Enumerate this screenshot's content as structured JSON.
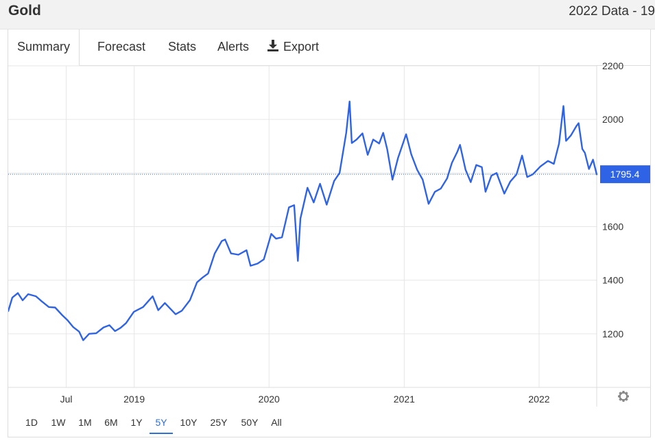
{
  "header": {
    "title": "Gold",
    "subtitle": "2022 Data - 19"
  },
  "tabs": [
    {
      "label": "Summary",
      "active": true
    },
    {
      "label": "Forecast",
      "active": false
    },
    {
      "label": "Stats",
      "active": false
    },
    {
      "label": "Alerts",
      "active": false
    },
    {
      "label": "Export",
      "active": false,
      "icon": "download-icon"
    }
  ],
  "ranges": [
    {
      "label": "1D",
      "active": false
    },
    {
      "label": "1W",
      "active": false
    },
    {
      "label": "1M",
      "active": false
    },
    {
      "label": "6M",
      "active": false
    },
    {
      "label": "1Y",
      "active": false
    },
    {
      "label": "5Y",
      "active": true
    },
    {
      "label": "10Y",
      "active": false
    },
    {
      "label": "25Y",
      "active": false
    },
    {
      "label": "50Y",
      "active": false
    },
    {
      "label": "All",
      "active": false
    }
  ],
  "colors": {
    "line": "#2f63e6",
    "current_badge": "#2f63e6",
    "grid": "#e6e6e6",
    "active_range": "#2f6fd6"
  },
  "chart_data": {
    "type": "line",
    "title": "",
    "xlabel": "",
    "ylabel": "",
    "ylim": [
      1000,
      2200
    ],
    "xlim": [
      "2018-01-25",
      "2022-06-06"
    ],
    "y_ticks": [
      1200,
      1400,
      1600,
      1800,
      2000,
      2200
    ],
    "x_ticks": [
      {
        "date": "2018-07-01",
        "label": "Jul"
      },
      {
        "date": "2019-01-01",
        "label": "2019"
      },
      {
        "date": "2020-01-01",
        "label": "2020"
      },
      {
        "date": "2021-01-01",
        "label": "2021"
      },
      {
        "date": "2022-01-01",
        "label": "2022"
      }
    ],
    "grid": true,
    "current_value": 1795.4,
    "current_label": "1795.4",
    "series": [
      {
        "points": [
          [
            "2018-01-25",
            1285
          ],
          [
            "2018-02-05",
            1335
          ],
          [
            "2018-02-20",
            1352
          ],
          [
            "2018-03-05",
            1325
          ],
          [
            "2018-03-20",
            1348
          ],
          [
            "2018-04-10",
            1340
          ],
          [
            "2018-04-25",
            1322
          ],
          [
            "2018-05-15",
            1300
          ],
          [
            "2018-06-01",
            1298
          ],
          [
            "2018-06-20",
            1270
          ],
          [
            "2018-07-05",
            1250
          ],
          [
            "2018-07-20",
            1225
          ],
          [
            "2018-08-05",
            1208
          ],
          [
            "2018-08-16",
            1176
          ],
          [
            "2018-09-01",
            1200
          ],
          [
            "2018-09-20",
            1202
          ],
          [
            "2018-10-10",
            1224
          ],
          [
            "2018-10-26",
            1232
          ],
          [
            "2018-11-10",
            1210
          ],
          [
            "2018-11-25",
            1222
          ],
          [
            "2018-12-10",
            1240
          ],
          [
            "2018-12-31",
            1282
          ],
          [
            "2019-01-25",
            1300
          ],
          [
            "2019-02-20",
            1340
          ],
          [
            "2019-03-07",
            1288
          ],
          [
            "2019-03-25",
            1315
          ],
          [
            "2019-04-23",
            1273
          ],
          [
            "2019-05-10",
            1286
          ],
          [
            "2019-06-01",
            1326
          ],
          [
            "2019-06-20",
            1392
          ],
          [
            "2019-07-05",
            1410
          ],
          [
            "2019-07-20",
            1425
          ],
          [
            "2019-08-07",
            1500
          ],
          [
            "2019-08-26",
            1546
          ],
          [
            "2019-09-04",
            1552
          ],
          [
            "2019-09-20",
            1500
          ],
          [
            "2019-10-10",
            1495
          ],
          [
            "2019-11-01",
            1512
          ],
          [
            "2019-11-12",
            1454
          ],
          [
            "2019-12-01",
            1462
          ],
          [
            "2019-12-18",
            1478
          ],
          [
            "2020-01-07",
            1573
          ],
          [
            "2020-01-20",
            1555
          ],
          [
            "2020-02-05",
            1560
          ],
          [
            "2020-02-24",
            1672
          ],
          [
            "2020-03-09",
            1680
          ],
          [
            "2020-03-19",
            1472
          ],
          [
            "2020-03-26",
            1630
          ],
          [
            "2020-04-14",
            1745
          ],
          [
            "2020-05-01",
            1690
          ],
          [
            "2020-05-18",
            1760
          ],
          [
            "2020-06-05",
            1682
          ],
          [
            "2020-06-25",
            1770
          ],
          [
            "2020-07-10",
            1800
          ],
          [
            "2020-07-28",
            1950
          ],
          [
            "2020-08-06",
            2067
          ],
          [
            "2020-08-12",
            1912
          ],
          [
            "2020-08-25",
            1925
          ],
          [
            "2020-09-10",
            1948
          ],
          [
            "2020-09-24",
            1868
          ],
          [
            "2020-10-09",
            1925
          ],
          [
            "2020-10-25",
            1910
          ],
          [
            "2020-11-05",
            1950
          ],
          [
            "2020-11-16",
            1888
          ],
          [
            "2020-11-30",
            1775
          ],
          [
            "2020-12-15",
            1855
          ],
          [
            "2021-01-06",
            1945
          ],
          [
            "2021-01-20",
            1870
          ],
          [
            "2021-02-05",
            1812
          ],
          [
            "2021-02-20",
            1775
          ],
          [
            "2021-03-08",
            1685
          ],
          [
            "2021-03-25",
            1730
          ],
          [
            "2021-04-10",
            1742
          ],
          [
            "2021-04-27",
            1780
          ],
          [
            "2021-05-10",
            1838
          ],
          [
            "2021-05-25",
            1880
          ],
          [
            "2021-06-01",
            1905
          ],
          [
            "2021-06-16",
            1812
          ],
          [
            "2021-06-30",
            1766
          ],
          [
            "2021-07-15",
            1830
          ],
          [
            "2021-07-30",
            1822
          ],
          [
            "2021-08-09",
            1730
          ],
          [
            "2021-08-25",
            1790
          ],
          [
            "2021-09-08",
            1800
          ],
          [
            "2021-09-29",
            1723
          ],
          [
            "2021-10-15",
            1768
          ],
          [
            "2021-11-01",
            1795
          ],
          [
            "2021-11-16",
            1865
          ],
          [
            "2021-11-30",
            1785
          ],
          [
            "2021-12-15",
            1795
          ],
          [
            "2022-01-05",
            1825
          ],
          [
            "2022-01-25",
            1845
          ],
          [
            "2022-02-10",
            1834
          ],
          [
            "2022-02-24",
            1910
          ],
          [
            "2022-03-08",
            2050
          ],
          [
            "2022-03-15",
            1920
          ],
          [
            "2022-03-28",
            1940
          ],
          [
            "2022-04-12",
            1975
          ],
          [
            "2022-04-18",
            1986
          ],
          [
            "2022-04-28",
            1890
          ],
          [
            "2022-05-05",
            1875
          ],
          [
            "2022-05-16",
            1815
          ],
          [
            "2022-05-27",
            1850
          ],
          [
            "2022-06-06",
            1795
          ]
        ]
      }
    ]
  }
}
